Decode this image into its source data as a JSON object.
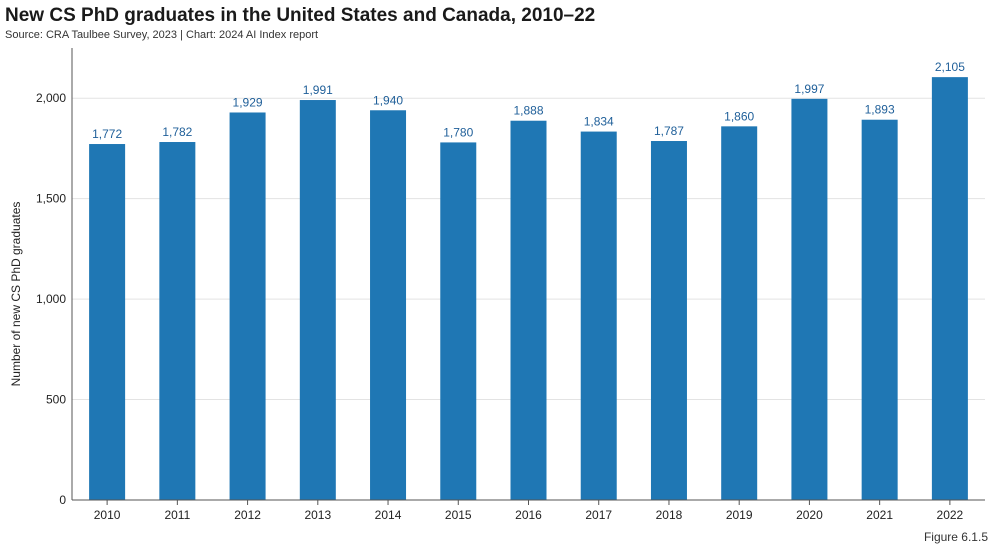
{
  "figure_label": "Figure 6.1.5",
  "colors": {
    "bar": "#1f77b4",
    "bar_label": "#1f5f99"
  },
  "chart_data": {
    "type": "bar",
    "title": "New CS PhD graduates in the United States and Canada, 2010–22",
    "subtitle": "Source: CRA Taulbee Survey, 2023 | Chart: 2024 AI Index report",
    "xlabel": "",
    "ylabel": "Number of new CS PhD graduates",
    "categories": [
      "2010",
      "2011",
      "2012",
      "2013",
      "2014",
      "2015",
      "2016",
      "2017",
      "2018",
      "2019",
      "2020",
      "2021",
      "2022"
    ],
    "values": [
      1772,
      1782,
      1929,
      1991,
      1940,
      1780,
      1888,
      1834,
      1787,
      1860,
      1997,
      1893,
      2105
    ],
    "value_labels": [
      "1,772",
      "1,782",
      "1,929",
      "1,991",
      "1,940",
      "1,780",
      "1,888",
      "1,834",
      "1,787",
      "1,860",
      "1,997",
      "1,893",
      "2,105"
    ],
    "yticks": [
      0,
      500,
      1000,
      1500,
      2000
    ],
    "ytick_labels": [
      "0",
      "500",
      "1,000",
      "1,500",
      "2,000"
    ],
    "ylim": [
      0,
      2250
    ],
    "grid": true
  }
}
